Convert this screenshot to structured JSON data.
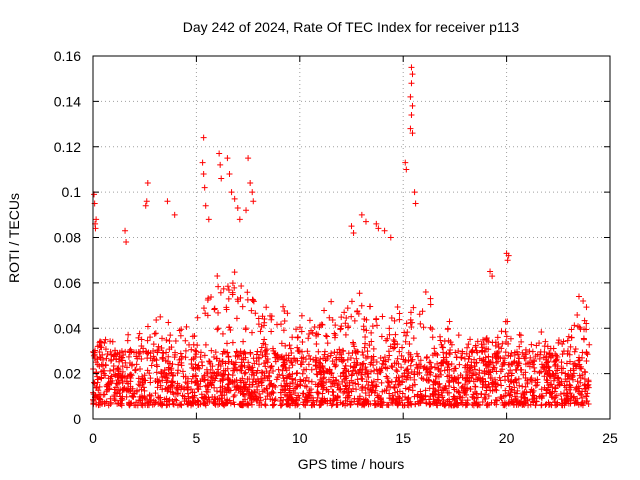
{
  "chart_data": {
    "type": "scatter",
    "title": "Day 242 of 2024, Rate Of TEC Index for receiver p113",
    "xlabel": "GPS time / hours",
    "ylabel": "ROTI / TECUs",
    "xlim": [
      0,
      25
    ],
    "ylim": [
      0,
      0.16
    ],
    "x_ticks": [
      0,
      5,
      10,
      15,
      20,
      25
    ],
    "y_ticks": [
      0,
      0.02,
      0.04,
      0.06,
      0.08,
      0.1,
      0.12,
      0.14,
      0.16
    ],
    "x_tick_labels": [
      "0",
      "5",
      "10",
      "15",
      "20",
      "25"
    ],
    "y_tick_labels": [
      "0",
      "0.02",
      "0.04",
      "0.06",
      "0.08",
      "0.1",
      "0.12",
      "0.14",
      "0.16"
    ],
    "grid": true,
    "marker": "plus",
    "series_color": "#ff0000",
    "profile": [
      {
        "h": 0,
        "base": 0.03
      },
      {
        "h": 0.5,
        "base": 0.038
      },
      {
        "h": 1,
        "base": 0.03
      },
      {
        "h": 2,
        "base": 0.035
      },
      {
        "h": 3,
        "base": 0.04
      },
      {
        "h": 4,
        "base": 0.042
      },
      {
        "h": 5,
        "base": 0.045
      },
      {
        "h": 6,
        "base": 0.058
      },
      {
        "h": 7,
        "base": 0.06
      },
      {
        "h": 8,
        "base": 0.052
      },
      {
        "h": 9,
        "base": 0.045
      },
      {
        "h": 10,
        "base": 0.042
      },
      {
        "h": 11,
        "base": 0.045
      },
      {
        "h": 12,
        "base": 0.045
      },
      {
        "h": 13,
        "base": 0.05
      },
      {
        "h": 14,
        "base": 0.05
      },
      {
        "h": 15,
        "base": 0.042
      },
      {
        "h": 16,
        "base": 0.05
      },
      {
        "h": 17,
        "base": 0.04
      },
      {
        "h": 18,
        "base": 0.03
      },
      {
        "h": 19,
        "base": 0.036
      },
      {
        "h": 20,
        "base": 0.04
      },
      {
        "h": 21,
        "base": 0.034
      },
      {
        "h": 22,
        "base": 0.034
      },
      {
        "h": 23,
        "base": 0.04
      },
      {
        "h": 24,
        "base": 0.045
      }
    ],
    "highlights": [
      {
        "x": 0.05,
        "y": 0.099
      },
      {
        "x": 0.08,
        "y": 0.095
      },
      {
        "x": 0.1,
        "y": 0.086
      },
      {
        "x": 0.12,
        "y": 0.084
      },
      {
        "x": 0.15,
        "y": 0.088
      },
      {
        "x": 1.55,
        "y": 0.083
      },
      {
        "x": 1.6,
        "y": 0.078
      },
      {
        "x": 2.65,
        "y": 0.104
      },
      {
        "x": 2.55,
        "y": 0.094
      },
      {
        "x": 2.6,
        "y": 0.096
      },
      {
        "x": 3.6,
        "y": 0.096
      },
      {
        "x": 3.95,
        "y": 0.09
      },
      {
        "x": 5.35,
        "y": 0.124
      },
      {
        "x": 5.3,
        "y": 0.113
      },
      {
        "x": 5.35,
        "y": 0.108
      },
      {
        "x": 5.4,
        "y": 0.102
      },
      {
        "x": 5.45,
        "y": 0.094
      },
      {
        "x": 5.6,
        "y": 0.088
      },
      {
        "x": 6.1,
        "y": 0.117
      },
      {
        "x": 6.15,
        "y": 0.112
      },
      {
        "x": 6.2,
        "y": 0.106
      },
      {
        "x": 6.5,
        "y": 0.115
      },
      {
        "x": 6.6,
        "y": 0.108
      },
      {
        "x": 6.7,
        "y": 0.1
      },
      {
        "x": 6.85,
        "y": 0.097
      },
      {
        "x": 7.0,
        "y": 0.093
      },
      {
        "x": 7.1,
        "y": 0.088
      },
      {
        "x": 7.5,
        "y": 0.115
      },
      {
        "x": 7.6,
        "y": 0.104
      },
      {
        "x": 7.7,
        "y": 0.1
      },
      {
        "x": 7.75,
        "y": 0.096
      },
      {
        "x": 7.4,
        "y": 0.092
      },
      {
        "x": 12.5,
        "y": 0.085
      },
      {
        "x": 12.6,
        "y": 0.082
      },
      {
        "x": 13.0,
        "y": 0.09
      },
      {
        "x": 13.2,
        "y": 0.087
      },
      {
        "x": 13.7,
        "y": 0.086
      },
      {
        "x": 13.8,
        "y": 0.084
      },
      {
        "x": 14.1,
        "y": 0.083
      },
      {
        "x": 14.4,
        "y": 0.08
      },
      {
        "x": 15.1,
        "y": 0.113
      },
      {
        "x": 15.15,
        "y": 0.11
      },
      {
        "x": 15.4,
        "y": 0.155
      },
      {
        "x": 15.45,
        "y": 0.152
      },
      {
        "x": 15.4,
        "y": 0.148
      },
      {
        "x": 15.35,
        "y": 0.142
      },
      {
        "x": 15.45,
        "y": 0.138
      },
      {
        "x": 15.4,
        "y": 0.134
      },
      {
        "x": 15.35,
        "y": 0.128
      },
      {
        "x": 15.45,
        "y": 0.126
      },
      {
        "x": 15.55,
        "y": 0.1
      },
      {
        "x": 15.6,
        "y": 0.095
      },
      {
        "x": 19.2,
        "y": 0.065
      },
      {
        "x": 19.3,
        "y": 0.063
      },
      {
        "x": 20.0,
        "y": 0.073
      },
      {
        "x": 20.1,
        "y": 0.072
      },
      {
        "x": 20.05,
        "y": 0.07
      },
      {
        "x": 23.5,
        "y": 0.054
      },
      {
        "x": 23.7,
        "y": 0.052
      }
    ]
  }
}
